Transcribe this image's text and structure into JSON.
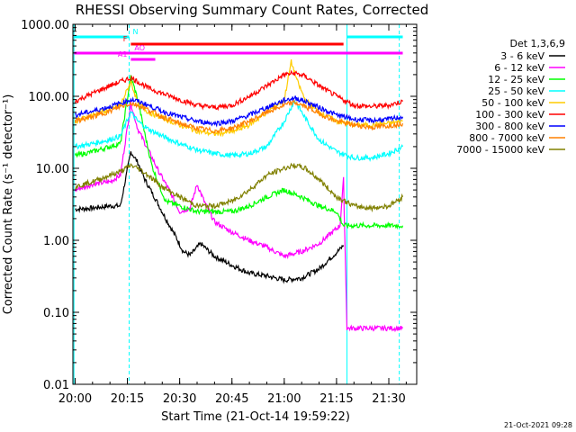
{
  "chart_data": {
    "type": "line",
    "title": "RHESSI Observing Summary Count Rates, Corrected",
    "xlabel": "Start Time (21-Oct-14 19:59:22)",
    "ylabel": "Corrected Count Rate (s⁻¹ detector⁻¹)",
    "y_scale": "log",
    "ylim": [
      0.01,
      1000
    ],
    "xlim": [
      "19:59:22",
      "21:38:00"
    ],
    "xticks": [
      "20:00",
      "20:15",
      "20:30",
      "20:45",
      "21:00",
      "21:15",
      "21:30"
    ],
    "yticks": [
      "0.01",
      "0.10",
      "1.00",
      "10.00",
      "100.00",
      "1000.00"
    ],
    "legend_title": "Det 1,3,6,9",
    "legend_position": "right",
    "grid": false,
    "series": [
      {
        "name": "3 - 6 keV",
        "color": "#000000",
        "x": [
          "20:00",
          "20:05",
          "20:10",
          "20:13",
          "20:16",
          "20:18",
          "20:20",
          "20:23",
          "20:26",
          "20:29",
          "20:31",
          "20:33",
          "20:36",
          "20:40",
          "20:45",
          "20:50",
          "20:55",
          "21:00",
          "21:05",
          "21:10",
          "21:13",
          "21:16",
          "21:17"
        ],
        "values": [
          2.7,
          2.8,
          3.0,
          3.0,
          17,
          12,
          7,
          3.8,
          2.0,
          1.1,
          0.7,
          0.62,
          0.9,
          0.6,
          0.45,
          0.35,
          0.32,
          0.28,
          0.3,
          0.4,
          0.55,
          0.75,
          0.85
        ]
      },
      {
        "name": "6 - 12 keV",
        "color": "#ff00ff",
        "x": [
          "20:00",
          "20:05",
          "20:10",
          "20:13",
          "20:16",
          "20:18",
          "20:21",
          "20:24",
          "20:27",
          "20:30",
          "20:33",
          "20:35",
          "20:37",
          "20:40",
          "20:45",
          "20:50",
          "20:55",
          "21:00",
          "21:05",
          "21:10",
          "21:13",
          "21:16",
          "21:17",
          "21:18",
          "21:20",
          "21:25",
          "21:30",
          "21:34"
        ],
        "values": [
          5,
          6,
          6.5,
          8,
          80,
          35,
          18,
          9,
          5,
          2.5,
          2.8,
          6,
          3.5,
          1.8,
          1.3,
          1.0,
          0.8,
          0.6,
          0.7,
          0.9,
          1.2,
          1.6,
          7,
          0.06,
          0.06,
          0.06,
          0.06,
          0.06
        ]
      },
      {
        "name": "12 - 25 keV",
        "color": "#00ff00",
        "x": [
          "20:00",
          "20:05",
          "20:10",
          "20:13",
          "20:16",
          "20:18",
          "20:20",
          "20:22",
          "20:24",
          "20:26",
          "20:30",
          "20:35",
          "20:40",
          "20:45",
          "20:50",
          "20:55",
          "21:00",
          "21:05",
          "21:10",
          "21:15",
          "21:17",
          "21:20",
          "21:25",
          "21:30",
          "21:34"
        ],
        "values": [
          15,
          17,
          20,
          22,
          190,
          90,
          30,
          11,
          6,
          3.5,
          3.0,
          2.5,
          2.5,
          2.5,
          3,
          4,
          5,
          4,
          3,
          2.5,
          1.6,
          1.6,
          1.6,
          1.6,
          1.6
        ]
      },
      {
        "name": "25 - 50 keV",
        "color": "#00ffff",
        "x": [
          "20:00",
          "20:05",
          "20:10",
          "20:13",
          "20:16",
          "20:18",
          "20:21",
          "20:25",
          "20:30",
          "20:35",
          "20:40",
          "20:45",
          "20:50",
          "20:55",
          "21:00",
          "21:03",
          "21:06",
          "21:10",
          "21:15",
          "21:20",
          "21:25",
          "21:30",
          "21:34"
        ],
        "values": [
          20,
          22,
          25,
          28,
          60,
          45,
          35,
          28,
          22,
          18,
          16,
          15,
          16,
          20,
          45,
          88,
          50,
          25,
          17,
          14,
          14,
          16,
          20
        ]
      },
      {
        "name": "50 - 100 keV",
        "color": "#ffcc00",
        "x": [
          "20:00",
          "20:05",
          "20:10",
          "20:13",
          "20:16",
          "20:18",
          "20:21",
          "20:25",
          "20:30",
          "20:35",
          "20:40",
          "20:45",
          "20:50",
          "20:55",
          "21:00",
          "21:02",
          "21:04",
          "21:06",
          "21:10",
          "21:15",
          "21:20",
          "21:25",
          "21:30",
          "21:34"
        ],
        "values": [
          45,
          55,
          65,
          75,
          160,
          80,
          60,
          50,
          40,
          33,
          30,
          32,
          40,
          60,
          90,
          300,
          150,
          90,
          60,
          45,
          40,
          40,
          42,
          45
        ]
      },
      {
        "name": "100 - 300 keV",
        "color": "#ff0000",
        "x": [
          "20:00",
          "20:05",
          "20:10",
          "20:13",
          "20:16",
          "20:18",
          "20:21",
          "20:25",
          "20:30",
          "20:35",
          "20:40",
          "20:45",
          "20:50",
          "20:55",
          "21:00",
          "21:03",
          "21:06",
          "21:10",
          "21:15",
          "21:20",
          "21:25",
          "21:30",
          "21:34"
        ],
        "values": [
          85,
          110,
          140,
          160,
          180,
          160,
          130,
          110,
          90,
          75,
          70,
          75,
          100,
          140,
          200,
          210,
          190,
          140,
          100,
          75,
          72,
          75,
          85
        ]
      },
      {
        "name": "300 - 800 keV",
        "color": "#0000ff",
        "x": [
          "20:00",
          "20:05",
          "20:10",
          "20:13",
          "20:16",
          "20:18",
          "20:21",
          "20:25",
          "20:30",
          "20:35",
          "20:40",
          "20:45",
          "20:50",
          "20:55",
          "21:00",
          "21:03",
          "21:06",
          "21:10",
          "21:15",
          "21:20",
          "21:25",
          "21:30",
          "21:34"
        ],
        "values": [
          55,
          62,
          72,
          80,
          90,
          85,
          75,
          62,
          52,
          45,
          42,
          45,
          55,
          70,
          88,
          95,
          85,
          70,
          55,
          48,
          46,
          48,
          52
        ]
      },
      {
        "name": "800 - 7000 keV",
        "color": "#ff8000",
        "x": [
          "20:00",
          "20:05",
          "20:10",
          "20:13",
          "20:16",
          "20:18",
          "20:21",
          "20:25",
          "20:30",
          "20:35",
          "20:40",
          "20:45",
          "20:50",
          "20:55",
          "21:00",
          "21:03",
          "21:06",
          "21:10",
          "21:15",
          "21:20",
          "21:25",
          "21:30",
          "21:34"
        ],
        "values": [
          45,
          52,
          62,
          72,
          80,
          75,
          65,
          52,
          42,
          36,
          33,
          36,
          45,
          60,
          75,
          82,
          72,
          58,
          45,
          40,
          37,
          39,
          42
        ]
      },
      {
        "name": "7000 - 15000 keV",
        "color": "#808000",
        "x": [
          "20:00",
          "20:05",
          "20:10",
          "20:13",
          "20:16",
          "20:18",
          "20:21",
          "20:25",
          "20:30",
          "20:35",
          "20:40",
          "20:45",
          "20:50",
          "20:55",
          "21:00",
          "21:03",
          "21:06",
          "21:10",
          "21:15",
          "21:20",
          "21:25",
          "21:30",
          "21:34"
        ],
        "values": [
          5.5,
          6.5,
          8,
          9,
          11,
          10,
          8,
          5.5,
          4,
          3,
          3,
          3.5,
          5,
          8,
          10,
          11,
          10,
          7,
          4,
          3,
          2.8,
          3,
          4
        ]
      }
    ],
    "vertical_markers": [
      {
        "x": "19:59:40",
        "style": "solid",
        "color": "#00ffff"
      },
      {
        "x": "20:15:30",
        "style": "dashed",
        "color": "#00ffff"
      },
      {
        "x": "21:18:00",
        "style": "solid",
        "color": "#00ffff"
      },
      {
        "x": "21:33:00",
        "style": "dashed",
        "color": "#00ffff"
      }
    ],
    "flag_bars": [
      {
        "label": "N",
        "color": "#00ffff",
        "level": 1,
        "segments": [
          [
            "19:59:40",
            "20:15:30"
          ],
          [
            "21:18:00",
            "21:34:00"
          ]
        ]
      },
      {
        "label": "F",
        "color": "#ff0000",
        "level": 2,
        "segments": [
          [
            "20:16:00",
            "21:17:00"
          ]
        ]
      },
      {
        "label": "AO",
        "color": "#ff00ff",
        "level": 3,
        "segments": [
          [
            "19:59:40",
            "21:34:00"
          ]
        ]
      },
      {
        "label": "A1",
        "color": "#ff00ff",
        "level": 4,
        "segments": [
          [
            "20:16:00",
            "20:23:00"
          ]
        ]
      }
    ]
  },
  "footer_timestamp": "21-Oct-2021 09:28"
}
